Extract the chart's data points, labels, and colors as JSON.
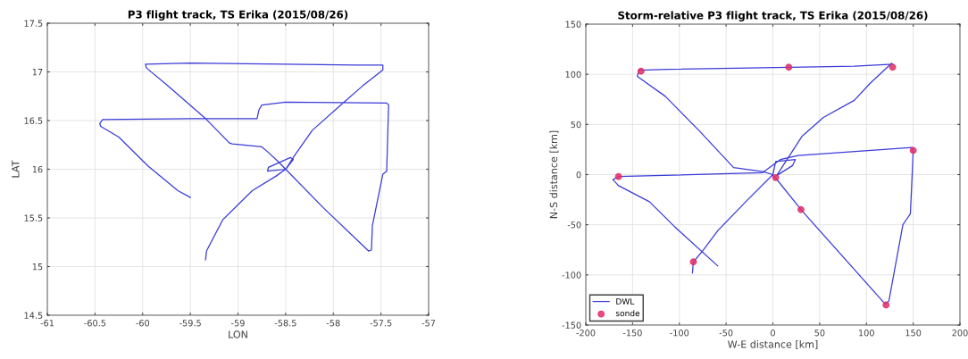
{
  "chart_data": [
    {
      "type": "line",
      "title": "P3 flight track, TS Erika (2015/08/26)",
      "xlabel": "LON",
      "ylabel": "LAT",
      "xlim": [
        -61,
        -57
      ],
      "ylim": [
        14.5,
        17.5
      ],
      "xticks": [
        -61,
        -60.5,
        -60,
        -59.5,
        -59,
        -58.5,
        -58,
        -57.5,
        -57
      ],
      "yticks": [
        14.5,
        15,
        15.5,
        16,
        16.5,
        17,
        17.5
      ],
      "grid": true,
      "legend": false,
      "series": [
        {
          "color": "#3a3ad8",
          "x": [
            -59.34,
            -59.33,
            -59.16,
            -58.85,
            -58.6,
            -58.5,
            -58.69,
            -58.68,
            -58.45,
            -58.42,
            -58.5,
            -58.4,
            -58.22,
            -57.91,
            -57.7,
            -57.48,
            -57.48,
            -57.75,
            -58.5,
            -59.5,
            -59.97,
            -59.96,
            -59.75,
            -59.34,
            -59.09,
            -59.06,
            -58.75,
            -58.69,
            -58.58,
            -58.5,
            -58.1,
            -57.63,
            -57.6,
            -57.59,
            -57.48,
            -57.44,
            -57.42,
            -57.44,
            -58.5,
            -58.75,
            -58.78,
            -58.8,
            -59.5,
            -60.42,
            -60.45,
            -60.44,
            -60.25,
            -59.94,
            -59.63,
            -59.5
          ],
          "values": [
            15.07,
            15.16,
            15.48,
            15.78,
            15.93,
            16.0,
            15.98,
            16.02,
            16.12,
            16.1,
            16.0,
            16.15,
            16.4,
            16.67,
            16.85,
            17.02,
            17.07,
            17.07,
            17.08,
            17.09,
            17.08,
            17.04,
            16.87,
            16.52,
            16.27,
            16.26,
            16.23,
            16.18,
            16.08,
            16.0,
            15.6,
            15.16,
            15.17,
            15.42,
            15.95,
            15.98,
            16.66,
            16.68,
            16.69,
            16.66,
            16.61,
            16.52,
            16.52,
            16.51,
            16.47,
            16.44,
            16.33,
            16.03,
            15.78,
            15.71
          ]
        }
      ]
    },
    {
      "type": "line",
      "title": "Storm-relative P3 flight track, TS Erika (2015/08/26)",
      "xlabel": "W-E distance [km]",
      "ylabel": "N-S distance [km]",
      "xlim": [
        -200,
        200
      ],
      "ylim": [
        -150,
        150
      ],
      "xticks": [
        -200,
        -150,
        -100,
        -50,
        0,
        50,
        100,
        150,
        200
      ],
      "yticks": [
        -150,
        -100,
        -50,
        0,
        50,
        100,
        150
      ],
      "grid": true,
      "legend": "bottom left",
      "series": [
        {
          "name": "DWL",
          "color": "#3a3ad8",
          "x": [
            -86,
            -85,
            -75,
            -59,
            -29,
            0,
            3,
            24,
            21,
            4,
            31,
            54,
            87,
            104,
            127,
            128,
            87,
            18,
            -112,
            -143,
            -145,
            -115,
            -79,
            -42,
            -11,
            0,
            31,
            120,
            124,
            139,
            147,
            150,
            149,
            27,
            8,
            -11,
            -165,
            -171,
            -165,
            -132,
            -105,
            -59
          ],
          "values": [
            -98,
            -87,
            -76,
            -56,
            -27,
            0,
            13,
            15,
            9,
            -1,
            38,
            57,
            74,
            91,
            111,
            110,
            108,
            107,
            105,
            104,
            98,
            78,
            44,
            7,
            3,
            0,
            -36,
            -129,
            -126,
            -50,
            -39,
            23,
            27,
            19,
            15,
            2,
            -2,
            -5,
            -11,
            -27,
            -52,
            -91
          ]
        },
        {
          "name": "sonde",
          "type": "scatter",
          "marker": "circle",
          "color": "#e0306a",
          "x": [
            -141,
            17,
            128,
            150,
            -165,
            0,
            2,
            3,
            30,
            -85,
            121
          ],
          "values": [
            103,
            107,
            107,
            24,
            -2,
            null,
            null,
            -3,
            -35,
            -87,
            -130
          ]
        }
      ]
    }
  ]
}
